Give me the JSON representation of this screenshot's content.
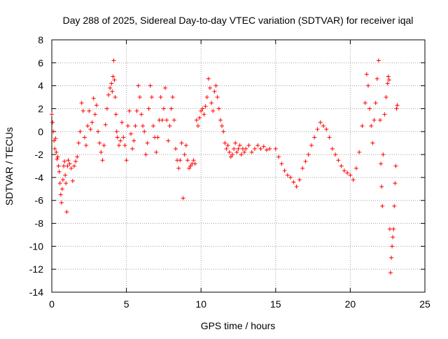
{
  "chart_data": {
    "type": "scatter",
    "title": "Day 288 of 2025, Sidereal Day-to-day VTEC variation (SDTVAR) for receiver iqal",
    "xlabel": "GPS time / hours",
    "ylabel": "SDTVAR / TECUs",
    "xlim": [
      0,
      25
    ],
    "ylim": [
      -14,
      8
    ],
    "x_ticks": [
      0,
      5,
      10,
      15,
      20,
      25
    ],
    "y_ticks": [
      -14,
      -12,
      -10,
      -8,
      -6,
      -4,
      -2,
      0,
      2,
      4,
      6,
      8
    ],
    "grid": true,
    "legend": "none",
    "marker": "+",
    "color": "#ff0000",
    "series": [
      {
        "name": "SDTVAR",
        "description": "dense '+' markers, approximate trace read from plot",
        "points": [
          [
            0.0,
            1.5
          ],
          [
            0.05,
            0.8
          ],
          [
            0.1,
            0.0
          ],
          [
            0.15,
            -0.8
          ],
          [
            0.2,
            -1.5
          ],
          [
            0.25,
            -0.6
          ],
          [
            0.3,
            -1.8
          ],
          [
            0.35,
            -2.4
          ],
          [
            0.4,
            -2.2
          ],
          [
            0.45,
            -3.0
          ],
          [
            0.5,
            -3.5
          ],
          [
            0.55,
            -4.5
          ],
          [
            0.6,
            -5.5
          ],
          [
            0.65,
            -6.2
          ],
          [
            0.7,
            -5.0
          ],
          [
            0.75,
            -4.2
          ],
          [
            0.8,
            -3.0
          ],
          [
            0.85,
            -2.6
          ],
          [
            0.9,
            -3.8
          ],
          [
            0.95,
            -4.5
          ],
          [
            1.0,
            -7.0
          ],
          [
            1.05,
            -3.0
          ],
          [
            1.1,
            -2.5
          ],
          [
            1.2,
            -2.8
          ],
          [
            1.3,
            -3.2
          ],
          [
            1.4,
            -4.3
          ],
          [
            1.5,
            -3.0
          ],
          [
            1.6,
            -2.6
          ],
          [
            1.7,
            -2.2
          ],
          [
            1.8,
            -1.0
          ],
          [
            1.9,
            0.0
          ],
          [
            2.0,
            2.5
          ],
          [
            2.1,
            1.8
          ],
          [
            2.2,
            -0.5
          ],
          [
            2.3,
            -1.2
          ],
          [
            2.4,
            0.5
          ],
          [
            2.5,
            1.8
          ],
          [
            2.6,
            0.2
          ],
          [
            2.7,
            0.8
          ],
          [
            2.8,
            2.9
          ],
          [
            2.9,
            1.5
          ],
          [
            3.0,
            2.3
          ],
          [
            3.1,
            0.0
          ],
          [
            3.2,
            -1.0
          ],
          [
            3.3,
            -1.8
          ],
          [
            3.4,
            -2.5
          ],
          [
            3.5,
            -1.2
          ],
          [
            3.6,
            0.6
          ],
          [
            3.7,
            2.0
          ],
          [
            3.8,
            3.2
          ],
          [
            3.9,
            3.8
          ],
          [
            4.0,
            4.2
          ],
          [
            4.05,
            3.5
          ],
          [
            4.1,
            4.8
          ],
          [
            4.15,
            6.2
          ],
          [
            4.2,
            4.5
          ],
          [
            4.25,
            3.0
          ],
          [
            4.3,
            1.5
          ],
          [
            4.35,
            0.0
          ],
          [
            4.4,
            -0.5
          ],
          [
            4.5,
            -1.2
          ],
          [
            4.6,
            -0.8
          ],
          [
            4.7,
            0.8
          ],
          [
            4.8,
            -0.5
          ],
          [
            4.9,
            -1.2
          ],
          [
            5.0,
            -2.5
          ],
          [
            5.1,
            0.5
          ],
          [
            5.2,
            1.8
          ],
          [
            5.3,
            -0.2
          ],
          [
            5.4,
            -1.5
          ],
          [
            5.5,
            -0.8
          ],
          [
            5.6,
            0.5
          ],
          [
            5.7,
            1.8
          ],
          [
            5.8,
            4.0
          ],
          [
            5.9,
            3.0
          ],
          [
            6.0,
            1.5
          ],
          [
            6.1,
            0.5
          ],
          [
            6.2,
            0.0
          ],
          [
            6.3,
            -2.0
          ],
          [
            6.4,
            -1.0
          ],
          [
            6.5,
            2.0
          ],
          [
            6.6,
            4.0
          ],
          [
            6.7,
            3.0
          ],
          [
            6.8,
            0.5
          ],
          [
            6.9,
            -0.5
          ],
          [
            7.0,
            -1.8
          ],
          [
            7.1,
            -0.5
          ],
          [
            7.2,
            1.0
          ],
          [
            7.3,
            3.0
          ],
          [
            7.4,
            1.0
          ],
          [
            7.5,
            2.0
          ],
          [
            7.6,
            3.8
          ],
          [
            7.7,
            1.0
          ],
          [
            7.8,
            -0.8
          ],
          [
            7.9,
            0.5
          ],
          [
            8.0,
            2.0
          ],
          [
            8.1,
            3.0
          ],
          [
            8.2,
            1.0
          ],
          [
            8.3,
            -1.5
          ],
          [
            8.4,
            -2.5
          ],
          [
            8.5,
            -3.2
          ],
          [
            8.6,
            -2.5
          ],
          [
            8.7,
            -1.0
          ],
          [
            8.8,
            -5.8
          ],
          [
            8.9,
            -2.0
          ],
          [
            9.0,
            -1.2
          ],
          [
            9.1,
            -2.5
          ],
          [
            9.2,
            -3.2
          ],
          [
            9.3,
            -3.0
          ],
          [
            9.4,
            -2.8
          ],
          [
            9.5,
            -2.5
          ],
          [
            9.6,
            -2.8
          ],
          [
            9.7,
            1.0
          ],
          [
            9.8,
            0.5
          ],
          [
            9.9,
            1.2
          ],
          [
            10.0,
            1.8
          ],
          [
            10.1,
            2.0
          ],
          [
            10.2,
            1.5
          ],
          [
            10.3,
            2.2
          ],
          [
            10.4,
            3.0
          ],
          [
            10.5,
            4.6
          ],
          [
            10.6,
            3.8
          ],
          [
            10.7,
            2.5
          ],
          [
            10.8,
            1.8
          ],
          [
            10.9,
            3.5
          ],
          [
            11.0,
            4.0
          ],
          [
            11.1,
            3.0
          ],
          [
            11.2,
            2.0
          ],
          [
            11.3,
            1.0
          ],
          [
            11.4,
            0.5
          ],
          [
            11.5,
            0.0
          ],
          [
            11.6,
            -1.0
          ],
          [
            11.7,
            -1.5
          ],
          [
            11.8,
            -1.2
          ],
          [
            11.9,
            -1.8
          ],
          [
            12.0,
            -2.2
          ],
          [
            12.1,
            -2.0
          ],
          [
            12.2,
            -1.5
          ],
          [
            12.3,
            -1.0
          ],
          [
            12.4,
            -1.8
          ],
          [
            12.5,
            -1.5
          ],
          [
            12.6,
            -1.2
          ],
          [
            12.7,
            -2.0
          ],
          [
            12.8,
            -1.5
          ],
          [
            12.9,
            -1.8
          ],
          [
            13.0,
            -1.5
          ],
          [
            13.2,
            -1.2
          ],
          [
            13.4,
            -1.8
          ],
          [
            13.6,
            -1.5
          ],
          [
            13.8,
            -1.2
          ],
          [
            14.0,
            -1.5
          ],
          [
            14.2,
            -1.3
          ],
          [
            14.4,
            -1.6
          ],
          [
            14.6,
            -1.5
          ],
          [
            15.0,
            -1.5
          ],
          [
            15.2,
            -2.2
          ],
          [
            15.4,
            -2.8
          ],
          [
            15.6,
            -3.4
          ],
          [
            15.8,
            -3.8
          ],
          [
            16.0,
            -4.0
          ],
          [
            16.2,
            -4.4
          ],
          [
            16.4,
            -4.8
          ],
          [
            16.6,
            -4.2
          ],
          [
            16.8,
            -3.2
          ],
          [
            17.0,
            -2.6
          ],
          [
            17.2,
            -2.0
          ],
          [
            17.4,
            -1.2
          ],
          [
            17.6,
            -0.5
          ],
          [
            17.8,
            0.2
          ],
          [
            18.0,
            0.8
          ],
          [
            18.2,
            0.5
          ],
          [
            18.4,
            0.2
          ],
          [
            18.6,
            -0.5
          ],
          [
            18.8,
            -1.5
          ],
          [
            19.0,
            -2.0
          ],
          [
            19.2,
            -2.5
          ],
          [
            19.4,
            -3.0
          ],
          [
            19.6,
            -3.4
          ],
          [
            19.8,
            -3.6
          ],
          [
            20.0,
            -3.8
          ],
          [
            20.2,
            -4.2
          ],
          [
            20.4,
            -3.2
          ],
          [
            20.6,
            -1.8
          ],
          [
            20.8,
            0.5
          ],
          [
            21.0,
            2.5
          ],
          [
            21.1,
            5.0
          ],
          [
            21.2,
            4.0
          ],
          [
            21.3,
            2.0
          ],
          [
            21.4,
            0.5
          ],
          [
            21.5,
            -1.0
          ],
          [
            21.6,
            1.0
          ],
          [
            21.7,
            2.5
          ],
          [
            21.8,
            4.6
          ],
          [
            21.9,
            6.2
          ],
          [
            22.0,
            1.0
          ],
          [
            22.05,
            -2.8
          ],
          [
            22.1,
            -4.8
          ],
          [
            22.15,
            -6.5
          ],
          [
            22.2,
            -2.0
          ],
          [
            22.3,
            1.5
          ],
          [
            22.4,
            3.0
          ],
          [
            22.5,
            4.2
          ],
          [
            22.55,
            4.8
          ],
          [
            22.6,
            4.5
          ],
          [
            22.65,
            -8.5
          ],
          [
            22.7,
            -12.3
          ],
          [
            22.75,
            -11.0
          ],
          [
            22.8,
            -10.0
          ],
          [
            22.85,
            -9.2
          ],
          [
            22.9,
            -8.5
          ],
          [
            22.95,
            -6.5
          ],
          [
            23.0,
            -4.5
          ],
          [
            23.05,
            -3.0
          ],
          [
            23.1,
            2.0
          ],
          [
            23.15,
            2.3
          ]
        ]
      }
    ]
  }
}
